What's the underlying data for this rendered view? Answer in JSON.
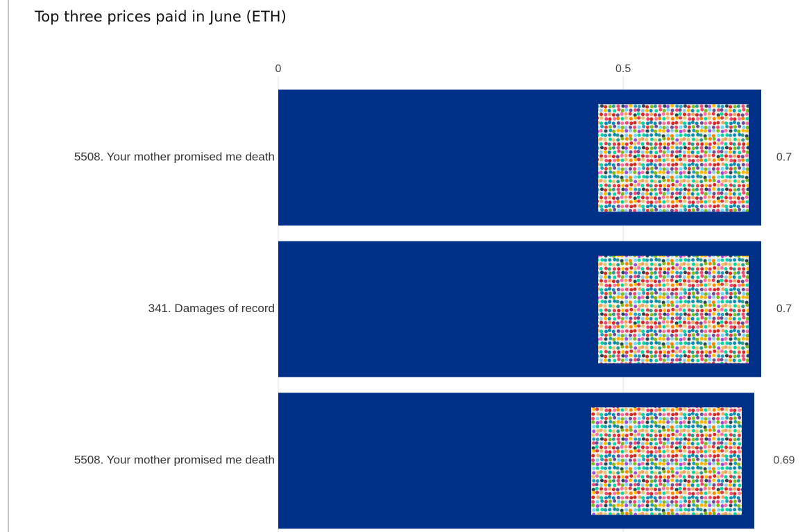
{
  "chart_data": {
    "type": "bar",
    "orientation": "horizontal",
    "title": "Top three prices paid in June (ETH)",
    "categories": [
      "5508. Your mother promised me death",
      "341. Damages of record",
      "5508. Your mother promised me death"
    ],
    "values": [
      0.7,
      0.7,
      0.69
    ],
    "color": "#003087",
    "xlim": [
      0,
      0.7
    ],
    "xticks": [
      0,
      0.5
    ],
    "grid": true
  }
}
